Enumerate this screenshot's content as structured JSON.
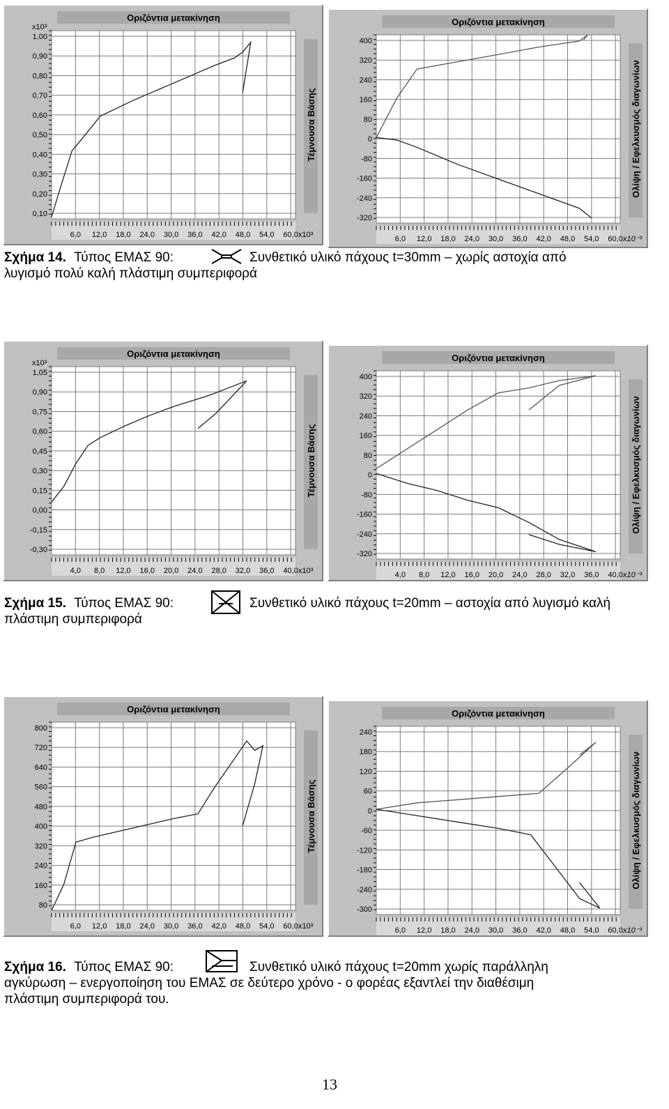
{
  "figures": [
    {
      "caption": {
        "label": "Σχήμα 14.",
        "lead": "Τύπος ΕΜΑΣ 90:",
        "line1_rest": "Συνθετικό υλικό πάχους t=30mm – χωρίς αστοχία από",
        "line2": "λυγισμό πολύ καλή πλάστιμη συμπεριφορά",
        "line3": ""
      },
      "charts": [
        {
          "type": "line",
          "title": "Οριζόντια μετακίνηση",
          "side_label": "Τέμνουσα Βάσης",
          "y_multiplier": "x10³",
          "x_multiplier": "x10³",
          "yticks": [
            "1,00",
            "0,90",
            "0,80",
            "0,70",
            "0,60",
            "0,50",
            "0,40",
            "0,30",
            "0,20",
            "0,10"
          ],
          "xticks": [
            "6,0",
            "12,0",
            "18,0",
            "24,0",
            "30,0",
            "36,0",
            "42,0",
            "48,0",
            "54,0",
            "60,0"
          ],
          "xlim": [
            0,
            60
          ],
          "ylim": [
            0.05,
            1.02
          ],
          "series": [
            {
              "values": [
                [
                  0,
                  0.06
                ],
                [
                  2,
                  0.2
                ],
                [
                  5,
                  0.4
                ],
                [
                  7,
                  0.45
                ],
                [
                  12,
                  0.58
                ],
                [
                  20,
                  0.66
                ],
                [
                  30,
                  0.75
                ],
                [
                  40,
                  0.84
                ],
                [
                  45,
                  0.88
                ],
                [
                  47,
                  0.91
                ],
                [
                  49,
                  0.96
                ],
                [
                  47,
                  0.7
                ]
              ]
            }
          ]
        },
        {
          "type": "line",
          "title": "Οριζόντια μετακίνηση",
          "side_label": "Ολίψη / Εφελκυσμός διαγωνίων",
          "y_multiplier": "",
          "x_multiplier": "x10⁻³",
          "yticks": [
            "400",
            "320",
            "240",
            "160",
            "80",
            "0",
            "-80",
            "-160",
            "-240",
            "-320"
          ],
          "xticks": [
            "6,0",
            "12,0",
            "18,0",
            "24,0",
            "30,0",
            "36,0",
            "42,0",
            "48,0",
            "54,0",
            "60,0"
          ],
          "xlim": [
            0,
            60
          ],
          "ylim": [
            -350,
            420
          ],
          "series": [
            {
              "values": [
                [
                  0,
                  0
                ],
                [
                  5,
                  160
                ],
                [
                  10,
                  280
                ],
                [
                  20,
                  310
                ],
                [
                  30,
                  340
                ],
                [
                  40,
                  370
                ],
                [
                  50,
                  395
                ],
                [
                  52,
                  420
                ],
                [
                  51,
                  400
                ]
              ]
            },
            {
              "values": [
                [
                  0,
                  0
                ],
                [
                  5,
                  -10
                ],
                [
                  10,
                  -40
                ],
                [
                  20,
                  -110
                ],
                [
                  30,
                  -170
                ],
                [
                  40,
                  -230
                ],
                [
                  50,
                  -290
                ],
                [
                  53,
                  -330
                ]
              ]
            }
          ]
        }
      ]
    },
    {
      "caption": {
        "label": "Σχήμα 15.",
        "lead": "Τύπος ΕΜΑΣ 90:",
        "line1_rest": "Συνθετικό υλικό πάχους t=20mm –  αστοχία από λυγισμό καλή",
        "line2": "πλάστιμη συμπεριφορά",
        "line3": ""
      },
      "charts": [
        {
          "type": "line",
          "title": "Οριζόντια μετακίνηση",
          "side_label": "Τέμνουσα Βάσης",
          "y_multiplier": "x10³",
          "x_multiplier": "x10³",
          "yticks": [
            "1,05",
            "0,90",
            "0,75",
            "0,60",
            "0,45",
            "0,30",
            "0,15",
            "0,00",
            "-0,15",
            "-0,30"
          ],
          "xticks": [
            "4,0",
            "8,0",
            "12,0",
            "16,0",
            "20,0",
            "24,0",
            "28,0",
            "32,0",
            "36,0",
            "40,0"
          ],
          "xlim": [
            0,
            40
          ],
          "ylim": [
            -0.38,
            1.08
          ],
          "series": [
            {
              "values": [
                [
                  0,
                  0.03
                ],
                [
                  2,
                  0.15
                ],
                [
                  4,
                  0.33
                ],
                [
                  6,
                  0.47
                ],
                [
                  8,
                  0.53
                ],
                [
                  12,
                  0.62
                ],
                [
                  16,
                  0.7
                ],
                [
                  20,
                  0.77
                ],
                [
                  26,
                  0.86
                ],
                [
                  32,
                  0.97
                ],
                [
                  27,
                  0.72
                ],
                [
                  24,
                  0.6
                ]
              ]
            }
          ]
        },
        {
          "type": "line",
          "title": "Οριζόντια μετακίνηση",
          "side_label": "Ολίψη / Εφελκυσμός διαγωνίων",
          "y_multiplier": "",
          "x_multiplier": "x10⁻³",
          "yticks": [
            "400",
            "320",
            "240",
            "160",
            "80",
            "0",
            "-80",
            "-160",
            "-240",
            "-320"
          ],
          "xticks": [
            "4,0",
            "8,0",
            "12,0",
            "16,0",
            "20,0",
            "24,0",
            "28,0",
            "32,0",
            "36,0",
            "40,0"
          ],
          "xlim": [
            0,
            40
          ],
          "ylim": [
            -350,
            420
          ],
          "series": [
            {
              "values": [
                [
                  0,
                  20
                ],
                [
                  5,
                  100
                ],
                [
                  10,
                  180
                ],
                [
                  15,
                  260
                ],
                [
                  20,
                  330
                ],
                [
                  25,
                  350
                ],
                [
                  30,
                  380
                ],
                [
                  36,
                  400
                ],
                [
                  30,
                  360
                ],
                [
                  25,
                  260
                ]
              ]
            },
            {
              "values": [
                [
                  0,
                  0
                ],
                [
                  5,
                  -40
                ],
                [
                  10,
                  -70
                ],
                [
                  15,
                  -110
                ],
                [
                  20,
                  -140
                ],
                [
                  25,
                  -200
                ],
                [
                  30,
                  -270
                ],
                [
                  36,
                  -320
                ],
                [
                  30,
                  -290
                ],
                [
                  25,
                  -250
                ]
              ]
            }
          ]
        }
      ]
    },
    {
      "caption": {
        "label": "Σχήμα 16.",
        "lead": "Τύπος ΕΜΑΣ 90:",
        "line1_rest": "Συνθετικό υλικό πάχους t=20mm χωρίς παράλληλη",
        "line2": "αγκύρωση –  ενεργοποίηση του ΕΜΑΣ σε δεύτερο χρόνο  - ο φορέας εξαντλεί την διαθέσιμη",
        "line3": "πλάστιμη συμπεριφορά του."
      },
      "charts": [
        {
          "type": "line",
          "title": "Οριζόντια μετακίνηση",
          "side_label": "Τέμνουσα Βάσης",
          "y_multiplier": "",
          "x_multiplier": "x10³",
          "yticks": [
            "800",
            "720",
            "640",
            "560",
            "480",
            "400",
            "320",
            "240",
            "160",
            "80"
          ],
          "xticks": [
            "6,0",
            "12,0",
            "18,0",
            "24,0",
            "30,0",
            "36,0",
            "42,0",
            "48,0",
            "54,0",
            "60,0"
          ],
          "xlim": [
            0,
            60
          ],
          "ylim": [
            40,
            840
          ],
          "series": [
            {
              "values": [
                [
                  0,
                  40
                ],
                [
                  3,
                  150
                ],
                [
                  6,
                  330
                ],
                [
                  10,
                  350
                ],
                [
                  20,
                  390
                ],
                [
                  30,
                  430
                ],
                [
                  36,
                  450
                ],
                [
                  40,
                  560
                ],
                [
                  44,
                  660
                ],
                [
                  48,
                  760
                ],
                [
                  50,
                  720
                ],
                [
                  52,
                  740
                ],
                [
                  50,
                  580
                ],
                [
                  47,
                  400
                ]
              ]
            }
          ]
        },
        {
          "type": "line",
          "title": "Οριζόντια μετακίνηση",
          "side_label": "Ολίψη / Εφελκυσμός διαγωνίων",
          "y_multiplier": "",
          "x_multiplier": "x10⁻³",
          "yticks": [
            "240",
            "180",
            "120",
            "60",
            "0",
            "-60",
            "-120",
            "-180",
            "-240",
            "-300"
          ],
          "xticks": [
            "6,0",
            "12,0",
            "18,0",
            "24,0",
            "30,0",
            "36,0",
            "42,0",
            "48,0",
            "54,0",
            "60,0"
          ],
          "xlim": [
            0,
            60
          ],
          "ylim": [
            -330,
            260
          ],
          "series": [
            {
              "values": [
                [
                  0,
                  0
                ],
                [
                  10,
                  20
                ],
                [
                  20,
                  30
                ],
                [
                  30,
                  40
                ],
                [
                  40,
                  50
                ],
                [
                  48,
                  140
                ],
                [
                  54,
                  210
                ],
                [
                  50,
                  170
                ]
              ]
            },
            {
              "values": [
                [
                  0,
                  0
                ],
                [
                  10,
                  -20
                ],
                [
                  20,
                  -40
                ],
                [
                  30,
                  -60
                ],
                [
                  38,
                  -80
                ],
                [
                  44,
                  -180
                ],
                [
                  50,
                  -280
                ],
                [
                  55,
                  -310
                ],
                [
                  50,
                  -230
                ]
              ]
            }
          ]
        }
      ]
    }
  ],
  "page_number": "13"
}
